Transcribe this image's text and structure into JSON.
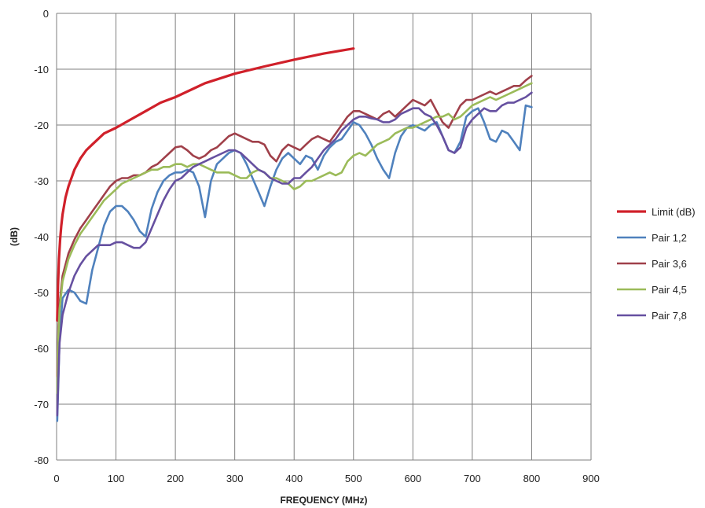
{
  "chart_data": {
    "type": "line",
    "title": "",
    "xlabel": "FREQUENCY (MHz)",
    "ylabel": "(dB)",
    "xlim": [
      0,
      900
    ],
    "ylim": [
      -80,
      0
    ],
    "xticks": [
      0,
      100,
      200,
      300,
      400,
      500,
      600,
      700,
      800,
      900
    ],
    "yticks": [
      0,
      -10,
      -20,
      -30,
      -40,
      -50,
      -60,
      -70,
      -80
    ],
    "grid": true,
    "legend_position": "right",
    "series": [
      {
        "name": "Limit (dB)",
        "color": "#d0202a",
        "x": [
          1,
          2,
          4,
          6,
          8,
          10,
          15,
          20,
          30,
          40,
          50,
          60,
          80,
          100,
          125,
          150,
          175,
          200,
          250,
          300,
          350,
          400,
          450,
          500
        ],
        "values": [
          -55,
          -50,
          -44,
          -40.5,
          -38,
          -36,
          -33,
          -31,
          -28,
          -26,
          -24.5,
          -23.5,
          -21.5,
          -20.5,
          -19,
          -17.5,
          -16,
          -15,
          -12.5,
          -10.8,
          -9.5,
          -8.3,
          -7.2,
          -6.3
        ]
      },
      {
        "name": "Pair 1,2",
        "color": "#4f81bd",
        "x": [
          1,
          3,
          5,
          10,
          20,
          30,
          40,
          50,
          60,
          70,
          80,
          90,
          100,
          110,
          120,
          130,
          140,
          150,
          160,
          170,
          180,
          190,
          200,
          210,
          220,
          230,
          240,
          250,
          260,
          270,
          280,
          290,
          300,
          310,
          320,
          330,
          340,
          350,
          360,
          370,
          380,
          390,
          400,
          410,
          420,
          430,
          440,
          450,
          460,
          470,
          480,
          490,
          500,
          510,
          520,
          530,
          540,
          550,
          560,
          570,
          580,
          590,
          600,
          610,
          620,
          630,
          640,
          650,
          660,
          670,
          680,
          690,
          700,
          710,
          720,
          730,
          740,
          750,
          760,
          770,
          780,
          790,
          800
        ],
        "values": [
          -73,
          -66,
          -58,
          -51,
          -49.5,
          -50,
          -51.5,
          -52,
          -46,
          -42,
          -38,
          -35.5,
          -34.5,
          -34.5,
          -35.5,
          -37,
          -39,
          -40,
          -35,
          -32,
          -30,
          -29,
          -28.5,
          -28.5,
          -28,
          -28.5,
          -31,
          -36.5,
          -30,
          -27,
          -26,
          -25,
          -24.5,
          -25,
          -27,
          -29.5,
          -32,
          -34.5,
          -31,
          -28,
          -26,
          -25,
          -26,
          -27,
          -25.5,
          -26,
          -28,
          -25.5,
          -24,
          -23,
          -22.5,
          -21,
          -19.5,
          -20,
          -21.5,
          -23.5,
          -26,
          -28,
          -29.5,
          -25,
          -22,
          -20.5,
          -20,
          -20.5,
          -21,
          -20,
          -19.5,
          -22,
          -24.5,
          -25,
          -23,
          -18.5,
          -17.5,
          -17,
          -19.5,
          -22.5,
          -23,
          -21,
          -21.5,
          -23,
          -24.5,
          -16.5,
          -16.8
        ]
      },
      {
        "name": "Pair 3,6",
        "color": "#a0404a",
        "x": [
          1,
          3,
          5,
          10,
          20,
          30,
          40,
          50,
          60,
          70,
          80,
          90,
          100,
          110,
          120,
          130,
          140,
          150,
          160,
          170,
          180,
          190,
          200,
          210,
          220,
          230,
          240,
          250,
          260,
          270,
          280,
          290,
          300,
          310,
          320,
          330,
          340,
          350,
          360,
          370,
          380,
          390,
          400,
          410,
          420,
          430,
          440,
          450,
          460,
          470,
          480,
          490,
          500,
          510,
          520,
          530,
          540,
          550,
          560,
          570,
          580,
          590,
          600,
          610,
          620,
          630,
          640,
          650,
          660,
          670,
          680,
          690,
          700,
          710,
          720,
          730,
          740,
          750,
          760,
          770,
          780,
          790,
          800
        ],
        "values": [
          -65,
          -56,
          -52,
          -47,
          -43,
          -40.5,
          -38.5,
          -37,
          -35.5,
          -34,
          -32.5,
          -31,
          -30,
          -29.5,
          -29.5,
          -29,
          -29,
          -28.5,
          -27.5,
          -27,
          -26,
          -25,
          -24,
          -23.8,
          -24.5,
          -25.5,
          -26,
          -25.5,
          -24.5,
          -24,
          -23,
          -22,
          -21.5,
          -22,
          -22.5,
          -23,
          -23,
          -23.5,
          -25.5,
          -26.5,
          -24.5,
          -23.5,
          -24,
          -24.5,
          -23.5,
          -22.5,
          -22,
          -22.5,
          -23,
          -21.5,
          -20,
          -18.5,
          -17.5,
          -17.5,
          -18,
          -18.5,
          -19,
          -18,
          -17.5,
          -18.5,
          -17.5,
          -16.5,
          -15.5,
          -16,
          -16.5,
          -15.5,
          -17.5,
          -19.5,
          -20.5,
          -18.5,
          -16.5,
          -15.5,
          -15.5,
          -15,
          -14.5,
          -14,
          -14.5,
          -14,
          -13.5,
          -13,
          -13,
          -12,
          -11.2
        ]
      },
      {
        "name": "Pair 4,5",
        "color": "#9bbb59",
        "x": [
          1,
          3,
          5,
          10,
          20,
          30,
          40,
          50,
          60,
          70,
          80,
          90,
          100,
          110,
          120,
          130,
          140,
          150,
          160,
          170,
          180,
          190,
          200,
          210,
          220,
          230,
          240,
          250,
          260,
          270,
          280,
          290,
          300,
          310,
          320,
          330,
          340,
          350,
          360,
          370,
          380,
          390,
          400,
          410,
          420,
          430,
          440,
          450,
          460,
          470,
          480,
          490,
          500,
          510,
          520,
          530,
          540,
          550,
          560,
          570,
          580,
          590,
          600,
          610,
          620,
          630,
          640,
          650,
          660,
          670,
          680,
          690,
          700,
          710,
          720,
          730,
          740,
          750,
          760,
          770,
          780,
          790,
          800
        ],
        "values": [
          -68,
          -58,
          -53,
          -48,
          -44,
          -41.5,
          -39.5,
          -38,
          -36.5,
          -35,
          -33.5,
          -32.5,
          -31.5,
          -30.5,
          -30,
          -29.5,
          -29,
          -28.5,
          -28,
          -28,
          -27.5,
          -27.5,
          -27,
          -27,
          -27.5,
          -27,
          -27,
          -27.5,
          -28,
          -28.5,
          -28.5,
          -28.5,
          -29,
          -29.5,
          -29.5,
          -28.5,
          -28,
          -28.5,
          -29.5,
          -29.5,
          -30,
          -30.5,
          -31.5,
          -31,
          -30,
          -30,
          -29.5,
          -29,
          -28.5,
          -29,
          -28.5,
          -26.5,
          -25.5,
          -25,
          -25.5,
          -24.5,
          -23.5,
          -23,
          -22.5,
          -21.5,
          -21,
          -20.5,
          -20.5,
          -20,
          -19.5,
          -19,
          -18.5,
          -18.5,
          -18,
          -19,
          -18.5,
          -17.5,
          -16.5,
          -16,
          -15.5,
          -15,
          -15.5,
          -15,
          -14.5,
          -14,
          -13.5,
          -13,
          -12.5
        ]
      },
      {
        "name": "Pair 7,8",
        "color": "#6650a0",
        "x": [
          1,
          3,
          5,
          10,
          20,
          30,
          40,
          50,
          60,
          70,
          80,
          90,
          100,
          110,
          120,
          130,
          140,
          150,
          160,
          170,
          180,
          190,
          200,
          210,
          220,
          230,
          240,
          250,
          260,
          270,
          280,
          290,
          300,
          310,
          320,
          330,
          340,
          350,
          360,
          370,
          380,
          390,
          400,
          410,
          420,
          430,
          440,
          450,
          460,
          470,
          480,
          490,
          500,
          510,
          520,
          530,
          540,
          550,
          560,
          570,
          580,
          590,
          600,
          610,
          620,
          630,
          640,
          650,
          660,
          670,
          680,
          690,
          700,
          710,
          720,
          730,
          740,
          750,
          760,
          770,
          780,
          790,
          800
        ],
        "values": [
          -72,
          -65,
          -59,
          -54,
          -50,
          -47,
          -45,
          -43.5,
          -42.5,
          -41.5,
          -41.5,
          -41.5,
          -41,
          -41,
          -41.5,
          -42,
          -42,
          -41,
          -38.5,
          -36,
          -33.5,
          -31.5,
          -30,
          -29.5,
          -28.5,
          -27.5,
          -27,
          -26.5,
          -26,
          -25.5,
          -25,
          -24.5,
          -24.5,
          -25,
          -26,
          -27,
          -28,
          -28.5,
          -29.5,
          -30,
          -30.5,
          -30.5,
          -29.5,
          -29.5,
          -28.5,
          -27.5,
          -26,
          -24.5,
          -23.5,
          -22.5,
          -21,
          -20,
          -19,
          -18.5,
          -18.5,
          -18.8,
          -19,
          -19.5,
          -19.5,
          -19,
          -18,
          -17.5,
          -17,
          -17,
          -18,
          -18.5,
          -20,
          -22,
          -24.5,
          -25,
          -24,
          -20.5,
          -19,
          -18,
          -17,
          -17.5,
          -17.5,
          -16.5,
          -16,
          -16,
          -15.5,
          -15,
          -14.2
        ]
      }
    ]
  }
}
